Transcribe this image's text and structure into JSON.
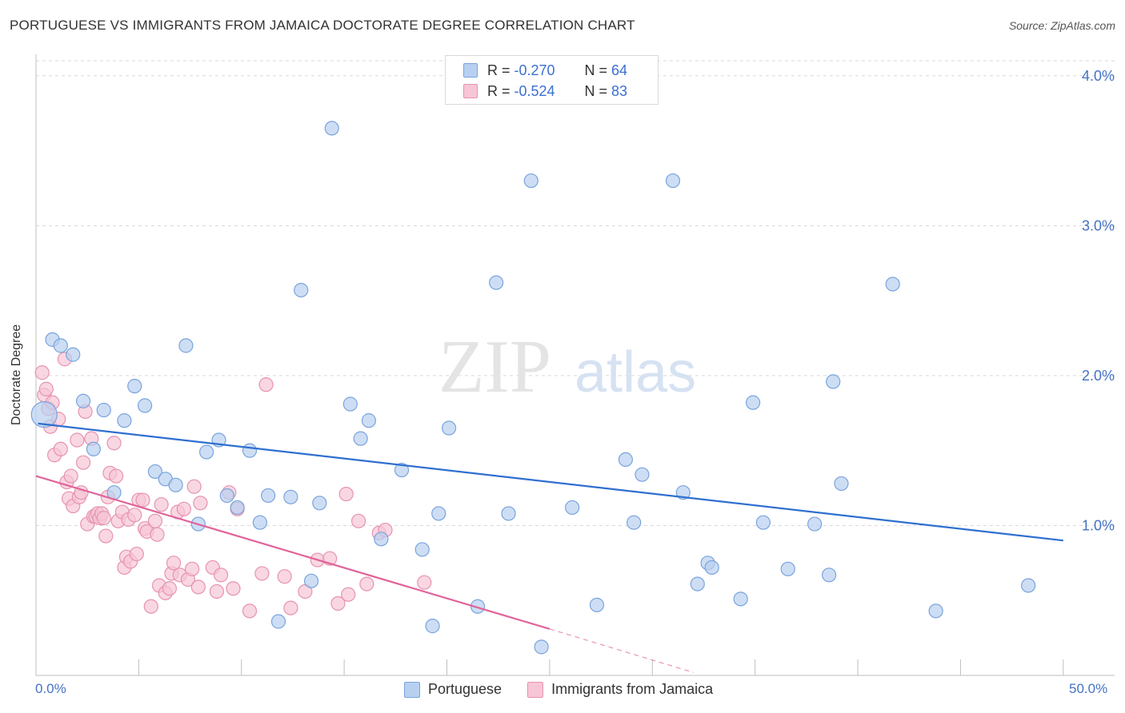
{
  "title": "PORTUGUESE VS IMMIGRANTS FROM JAMAICA DOCTORATE DEGREE CORRELATION CHART",
  "source": "Source: ZipAtlas.com",
  "watermark": {
    "zip": "ZIP",
    "atlas": "atlas"
  },
  "colors": {
    "blue_fill": "#b8d0f0",
    "blue_stroke": "#7aa3de",
    "blue_line": "#2e6fd0",
    "pink_fill": "#f7c6d6",
    "pink_stroke": "#e693b0",
    "pink_line": "#e0649a",
    "axis_text": "#4472c4",
    "grid": "#d9d9d9"
  },
  "legend": {
    "rows": [
      {
        "r_label": "R = ",
        "r_value": "-0.270",
        "n_label": "N = ",
        "n_value": "64"
      },
      {
        "r_label": "R = ",
        "r_value": "-0.524",
        "n_label": "N = ",
        "n_value": "83"
      }
    ]
  },
  "bottom_legend": [
    "Portuguese",
    "Immigrants from Jamaica"
  ],
  "chart_data": {
    "type": "scatter",
    "title": "PORTUGUESE VS IMMIGRANTS FROM JAMAICA DOCTORATE DEGREE CORRELATION CHART",
    "xlabel": "",
    "ylabel": "Doctorate Degree",
    "xlim": [
      0,
      52.5
    ],
    "ylim": [
      0,
      4.1
    ],
    "x_tick_labels": {
      "left": "0.0%",
      "right": "50.0%"
    },
    "y_ticks": [
      1.0,
      2.0,
      3.0,
      4.0
    ],
    "y_tick_labels": [
      "1.0%",
      "2.0%",
      "3.0%",
      "4.0%"
    ],
    "grid": true,
    "series": [
      {
        "name": "Portuguese",
        "R": -0.27,
        "N": 64,
        "trend": {
          "x": [
            0.1,
            50.0
          ],
          "y": [
            1.68,
            0.9
          ]
        },
        "points": [
          {
            "x": 0.4,
            "y": 1.74,
            "big": true
          },
          {
            "x": 0.8,
            "y": 2.24
          },
          {
            "x": 1.2,
            "y": 2.2
          },
          {
            "x": 1.8,
            "y": 2.14
          },
          {
            "x": 2.3,
            "y": 1.83
          },
          {
            "x": 2.8,
            "y": 1.51
          },
          {
            "x": 3.3,
            "y": 1.77
          },
          {
            "x": 3.8,
            "y": 1.22
          },
          {
            "x": 4.3,
            "y": 1.7
          },
          {
            "x": 4.8,
            "y": 1.93
          },
          {
            "x": 5.3,
            "y": 1.8
          },
          {
            "x": 5.8,
            "y": 1.36
          },
          {
            "x": 6.3,
            "y": 1.31
          },
          {
            "x": 6.8,
            "y": 1.27
          },
          {
            "x": 7.3,
            "y": 2.2
          },
          {
            "x": 7.9,
            "y": 1.01
          },
          {
            "x": 8.3,
            "y": 1.49
          },
          {
            "x": 8.9,
            "y": 1.57
          },
          {
            "x": 9.3,
            "y": 1.2
          },
          {
            "x": 9.8,
            "y": 1.12
          },
          {
            "x": 10.4,
            "y": 1.5
          },
          {
            "x": 10.9,
            "y": 1.02
          },
          {
            "x": 11.3,
            "y": 1.2
          },
          {
            "x": 11.8,
            "y": 0.36
          },
          {
            "x": 12.4,
            "y": 1.19
          },
          {
            "x": 12.9,
            "y": 2.57
          },
          {
            "x": 13.4,
            "y": 0.63
          },
          {
            "x": 13.8,
            "y": 1.15
          },
          {
            "x": 14.4,
            "y": 3.65
          },
          {
            "x": 15.3,
            "y": 1.81
          },
          {
            "x": 15.8,
            "y": 1.58
          },
          {
            "x": 16.2,
            "y": 1.7
          },
          {
            "x": 16.8,
            "y": 0.91
          },
          {
            "x": 17.8,
            "y": 1.37
          },
          {
            "x": 18.8,
            "y": 0.84
          },
          {
            "x": 19.3,
            "y": 0.33
          },
          {
            "x": 19.6,
            "y": 1.08
          },
          {
            "x": 20.1,
            "y": 1.65
          },
          {
            "x": 21.5,
            "y": 0.46
          },
          {
            "x": 22.4,
            "y": 2.62
          },
          {
            "x": 23.0,
            "y": 1.08
          },
          {
            "x": 24.1,
            "y": 3.3
          },
          {
            "x": 24.6,
            "y": 0.19
          },
          {
            "x": 26.1,
            "y": 1.12
          },
          {
            "x": 27.3,
            "y": 0.47
          },
          {
            "x": 28.7,
            "y": 1.44
          },
          {
            "x": 29.1,
            "y": 1.02
          },
          {
            "x": 29.5,
            "y": 1.34
          },
          {
            "x": 31.0,
            "y": 3.3
          },
          {
            "x": 31.5,
            "y": 1.22
          },
          {
            "x": 32.2,
            "y": 0.61
          },
          {
            "x": 32.7,
            "y": 0.75
          },
          {
            "x": 32.9,
            "y": 0.72
          },
          {
            "x": 34.3,
            "y": 0.51
          },
          {
            "x": 34.9,
            "y": 1.82
          },
          {
            "x": 35.4,
            "y": 1.02
          },
          {
            "x": 36.6,
            "y": 0.71
          },
          {
            "x": 37.9,
            "y": 1.01
          },
          {
            "x": 38.6,
            "y": 0.67
          },
          {
            "x": 38.8,
            "y": 1.96
          },
          {
            "x": 39.2,
            "y": 1.28
          },
          {
            "x": 41.7,
            "y": 2.61
          },
          {
            "x": 43.8,
            "y": 0.43
          },
          {
            "x": 48.3,
            "y": 0.6
          }
        ]
      },
      {
        "name": "Immigrants from Jamaica",
        "R": -0.524,
        "N": 83,
        "trend": {
          "x": [
            0.0,
            25.0
          ],
          "y": [
            1.33,
            0.31
          ]
        },
        "trend_dashed": {
          "x": [
            25.0,
            32.0
          ],
          "y": [
            0.31,
            0.02
          ]
        },
        "points": [
          {
            "x": 0.3,
            "y": 2.02
          },
          {
            "x": 0.4,
            "y": 1.87
          },
          {
            "x": 0.5,
            "y": 1.91
          },
          {
            "x": 0.6,
            "y": 1.78
          },
          {
            "x": 0.7,
            "y": 1.66
          },
          {
            "x": 0.8,
            "y": 1.82
          },
          {
            "x": 0.9,
            "y": 1.47
          },
          {
            "x": 1.1,
            "y": 1.71
          },
          {
            "x": 1.2,
            "y": 1.51
          },
          {
            "x": 1.4,
            "y": 2.11
          },
          {
            "x": 1.5,
            "y": 1.29
          },
          {
            "x": 1.6,
            "y": 1.18
          },
          {
            "x": 1.7,
            "y": 1.33
          },
          {
            "x": 1.8,
            "y": 1.13
          },
          {
            "x": 2.0,
            "y": 1.57
          },
          {
            "x": 2.1,
            "y": 1.19
          },
          {
            "x": 2.2,
            "y": 1.22
          },
          {
            "x": 2.3,
            "y": 1.42
          },
          {
            "x": 2.4,
            "y": 1.76
          },
          {
            "x": 2.5,
            "y": 1.01
          },
          {
            "x": 2.7,
            "y": 1.58
          },
          {
            "x": 2.8,
            "y": 1.06
          },
          {
            "x": 2.9,
            "y": 1.06
          },
          {
            "x": 3.0,
            "y": 1.08
          },
          {
            "x": 3.1,
            "y": 1.05
          },
          {
            "x": 3.2,
            "y": 1.08
          },
          {
            "x": 3.3,
            "y": 1.05
          },
          {
            "x": 3.4,
            "y": 0.93
          },
          {
            "x": 3.5,
            "y": 1.19
          },
          {
            "x": 3.6,
            "y": 1.35
          },
          {
            "x": 3.8,
            "y": 1.55
          },
          {
            "x": 3.9,
            "y": 1.33
          },
          {
            "x": 4.0,
            "y": 1.03
          },
          {
            "x": 4.2,
            "y": 1.09
          },
          {
            "x": 4.3,
            "y": 0.72
          },
          {
            "x": 4.4,
            "y": 0.79
          },
          {
            "x": 4.5,
            "y": 1.04
          },
          {
            "x": 4.6,
            "y": 0.76
          },
          {
            "x": 4.8,
            "y": 1.07
          },
          {
            "x": 4.9,
            "y": 0.81
          },
          {
            "x": 5.0,
            "y": 1.17
          },
          {
            "x": 5.2,
            "y": 1.17
          },
          {
            "x": 5.3,
            "y": 0.98
          },
          {
            "x": 5.4,
            "y": 0.96
          },
          {
            "x": 5.6,
            "y": 0.46
          },
          {
            "x": 5.8,
            "y": 1.03
          },
          {
            "x": 5.9,
            "y": 0.94
          },
          {
            "x": 6.0,
            "y": 0.6
          },
          {
            "x": 6.1,
            "y": 1.14
          },
          {
            "x": 6.3,
            "y": 0.55
          },
          {
            "x": 6.5,
            "y": 0.58
          },
          {
            "x": 6.6,
            "y": 0.68
          },
          {
            "x": 6.7,
            "y": 0.75
          },
          {
            "x": 6.9,
            "y": 1.09
          },
          {
            "x": 7.0,
            "y": 0.67
          },
          {
            "x": 7.2,
            "y": 1.11
          },
          {
            "x": 7.4,
            "y": 0.64
          },
          {
            "x": 7.6,
            "y": 0.71
          },
          {
            "x": 7.7,
            "y": 1.26
          },
          {
            "x": 7.9,
            "y": 0.59
          },
          {
            "x": 8.0,
            "y": 1.15
          },
          {
            "x": 8.6,
            "y": 0.72
          },
          {
            "x": 8.8,
            "y": 0.56
          },
          {
            "x": 9.0,
            "y": 0.67
          },
          {
            "x": 9.4,
            "y": 1.22
          },
          {
            "x": 9.6,
            "y": 0.58
          },
          {
            "x": 9.8,
            "y": 1.11
          },
          {
            "x": 10.4,
            "y": 0.43
          },
          {
            "x": 11.0,
            "y": 0.68
          },
          {
            "x": 11.2,
            "y": 1.94
          },
          {
            "x": 12.1,
            "y": 0.66
          },
          {
            "x": 12.4,
            "y": 0.45
          },
          {
            "x": 13.1,
            "y": 0.56
          },
          {
            "x": 13.7,
            "y": 0.77
          },
          {
            "x": 14.3,
            "y": 0.78
          },
          {
            "x": 14.7,
            "y": 0.48
          },
          {
            "x": 15.1,
            "y": 1.21
          },
          {
            "x": 15.2,
            "y": 0.54
          },
          {
            "x": 15.7,
            "y": 1.03
          },
          {
            "x": 16.1,
            "y": 0.61
          },
          {
            "x": 16.7,
            "y": 0.95
          },
          {
            "x": 17.0,
            "y": 0.97
          },
          {
            "x": 18.9,
            "y": 0.62
          }
        ]
      }
    ]
  }
}
